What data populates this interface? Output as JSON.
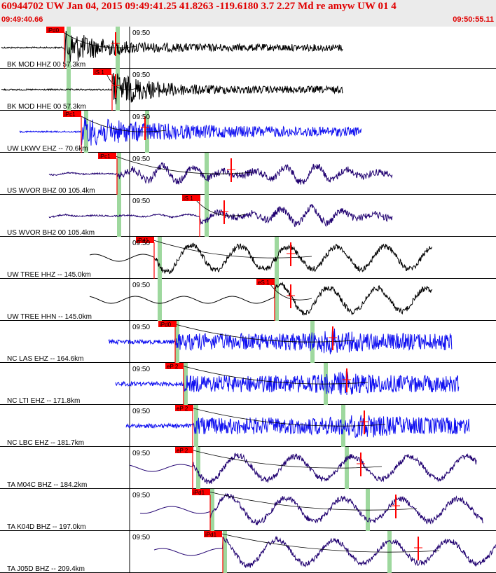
{
  "header": {
    "title": "60944702 UW Jan 04, 2015 09:49:41.25   41.8263 -119.6180  3.7 2.27 Md re amyw UW 01   4",
    "start_time": "09:49:40.66",
    "end_time": "09:50:55.11"
  },
  "time_tick_label": "09:50",
  "colors": {
    "header_text": "#e00000",
    "pick": "#ff0000",
    "black_trace": "#000000",
    "blue_trace": "#1010f0",
    "purple_trace": "#200070",
    "window": "#9ed89e"
  },
  "traces": [
    {
      "label": "BK MOD HHZ 00 57.3km",
      "pick": "iPd0",
      "color": "black"
    },
    {
      "label": "BK MOD HHE 00 57.3km",
      "pick": "iS 1",
      "color": "black"
    },
    {
      "label": "UW LKWV EHZ -- 70.6km",
      "pick": "iPc1",
      "color": "blue"
    },
    {
      "label": "US WVOR BHZ 00 105.4km",
      "pick": "iPc1",
      "color": "purple"
    },
    {
      "label": "US WVOR BH2 00 105.4km",
      "pick": "iS 1",
      "color": "purple"
    },
    {
      "label": "UW TREE HHZ -- 145.0km",
      "pick": "iPd1",
      "color": "black"
    },
    {
      "label": "UW TREE HHN -- 145.0km",
      "pick": "eS 1",
      "color": "black"
    },
    {
      "label": "NC LAS EHZ -- 164.6km",
      "pick": "iPd0",
      "color": "blue"
    },
    {
      "label": "NC LTI EHZ -- 171.8km",
      "pick": "eP 2",
      "color": "blue"
    },
    {
      "label": "NC LBC EHZ -- 181.7km",
      "pick": "eP 2",
      "color": "blue"
    },
    {
      "label": "TA M04C BHZ -- 184.2km",
      "pick": "eP 2",
      "color": "purple"
    },
    {
      "label": "TA K04D BHZ -- 197.0km",
      "pick": "iPd1",
      "color": "purple"
    },
    {
      "label": "TA J05D BHZ -- 209.4km",
      "pick": "iPd1",
      "color": "purple"
    }
  ]
}
